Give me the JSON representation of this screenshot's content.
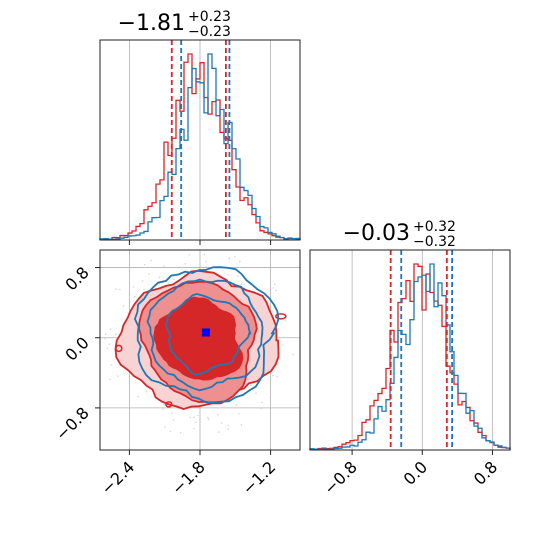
{
  "colors": {
    "red": "#d62728",
    "blue": "#1f77b4",
    "red_fill_dark": "#d62728",
    "red_fill_mid": "#ee8f90",
    "red_fill_light": "#f8d3d3",
    "marker": "#0000ff",
    "grid": "#b0b0b0"
  },
  "chart_data": [
    {
      "type": "histogram",
      "panel": "marginal-x",
      "title": {
        "value": "−1.81",
        "upper": "+0.23",
        "lower": "−0.23"
      },
      "xlim": [
        -2.65,
        -0.95
      ],
      "xticks": [
        -2.4,
        -1.8,
        -1.2
      ],
      "quantile_lines": {
        "red": [
          -2.04,
          -1.58
        ],
        "blue": [
          -1.96,
          -1.55
        ]
      },
      "series": [
        {
          "name": "",
          "color": "red",
          "center": -1.81,
          "sigma": 0.23,
          "noise_seed": 7
        },
        {
          "name": "",
          "color": "blue",
          "center": -1.75,
          "sigma": 0.22,
          "noise_seed": 19
        }
      ]
    },
    {
      "type": "contour",
      "panel": "joint",
      "xlim": [
        -2.65,
        -0.95
      ],
      "ylim": [
        -1.28,
        1.0
      ],
      "xticks": [
        -2.4,
        -1.8,
        -1.2
      ],
      "xtick_labels": [
        "−2.4",
        "−1.8",
        "−1.2"
      ],
      "yticks": [
        -0.8,
        0.0,
        0.8
      ],
      "ytick_labels": [
        "−0.8",
        "0.0",
        "0.8"
      ],
      "red_center": [
        -1.81,
        -0.03
      ],
      "blue_center": [
        -1.75,
        0.05
      ],
      "marker": [
        -1.75,
        0.06
      ]
    },
    {
      "type": "histogram",
      "panel": "marginal-y",
      "title": {
        "value": "−0.03",
        "upper": "+0.32",
        "lower": "−0.32"
      },
      "xlim": [
        -1.28,
        1.0
      ],
      "xticks": [
        -0.8,
        0.0,
        0.8
      ],
      "xtick_labels": [
        "−0.8",
        "0.0",
        "0.8"
      ],
      "quantile_lines": {
        "red": [
          -0.36,
          0.28
        ],
        "blue": [
          -0.24,
          0.34
        ]
      },
      "series": [
        {
          "name": "",
          "color": "red",
          "center": -0.03,
          "sigma": 0.32,
          "noise_seed": 31
        },
        {
          "name": "",
          "color": "blue",
          "center": 0.04,
          "sigma": 0.3,
          "noise_seed": 43
        }
      ]
    }
  ]
}
